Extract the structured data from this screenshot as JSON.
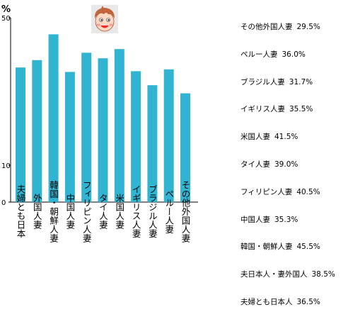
{
  "chart_data": {
    "type": "bar",
    "unit_label": "%",
    "ylim": [
      0,
      50
    ],
    "yticks": [
      "50",
      "10",
      "0"
    ],
    "grid": false,
    "color": "#31b4d2",
    "categories": [
      "夫婦とも日本",
      "外国人妻",
      "韓国・朝鮮人妻",
      "中国人妻",
      "フィリピン人妻",
      "タイ人妻",
      "米国人妻",
      "イギリス人妻",
      "ブラジル人妻",
      "ペルー人妻",
      "その他外国人妻"
    ],
    "values": [
      36.5,
      38.5,
      45.5,
      35.3,
      40.5,
      39.0,
      41.5,
      35.5,
      31.7,
      36.0,
      29.5
    ]
  },
  "legend": [
    {
      "label": "その他外国人妻",
      "value": "29.5%"
    },
    {
      "label": "ペルー人妻",
      "value": "36.0%"
    },
    {
      "label": "ブラジル人妻",
      "value": "31.7%"
    },
    {
      "label": "イギリス人妻",
      "value": "35.5%"
    },
    {
      "label": "米国人妻",
      "value": "41.5%"
    },
    {
      "label": "タイ人妻",
      "value": "39.0%"
    },
    {
      "label": "フィリピン人妻",
      "value": "40.5%"
    },
    {
      "label": "中国人妻",
      "value": "35.3%"
    },
    {
      "label": "韓国・朝鮮人妻",
      "value": "45.5%"
    },
    {
      "label": "夫日本人・妻外国人",
      "value": "38.5%"
    },
    {
      "label": "夫婦とも日本人",
      "value": "36.5%"
    }
  ],
  "icons": {
    "mascot": "cartoon-boy-face-icon"
  },
  "colors": {
    "bar": "#31b4d2",
    "skin": "#ffd6c8",
    "hair": "#c0603a"
  }
}
